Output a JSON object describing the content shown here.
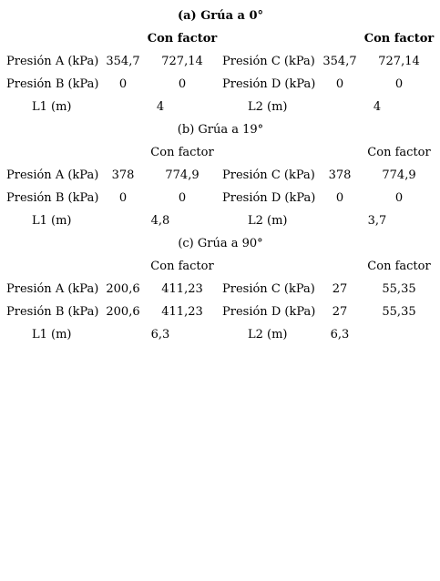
{
  "labels": {
    "con_factor": "Con factor",
    "presion_a": "Presión A (kPa)",
    "presion_b": "Presión B (kPa)",
    "presion_c": "Presión C (kPa)",
    "presion_d": "Presión D (kPa)",
    "l1": "L1 (m)",
    "l2": "L2 (m)"
  },
  "sections": [
    {
      "title": "(a) Grúa a 0°",
      "a": [
        "354,7",
        "727,14"
      ],
      "b": [
        "0",
        "0"
      ],
      "c": [
        "354,7",
        "727,14"
      ],
      "d": [
        "0",
        "0"
      ],
      "l1": "4",
      "l2": "4"
    },
    {
      "title": "(b) Grúa a 19°",
      "a": [
        "378",
        "774,9"
      ],
      "b": [
        "0",
        "0"
      ],
      "c": [
        "378",
        "774,9"
      ],
      "d": [
        "0",
        "0"
      ],
      "l1": "4,8",
      "l2": "3,7"
    },
    {
      "title": "(c) Grúa a 90°",
      "a": [
        "200,6",
        "411,23"
      ],
      "b": [
        "200,6",
        "411,23"
      ],
      "c": [
        "27",
        "55,35"
      ],
      "d": [
        "27",
        "55,35"
      ],
      "l1": "6,3",
      "l2": "6,3"
    }
  ]
}
